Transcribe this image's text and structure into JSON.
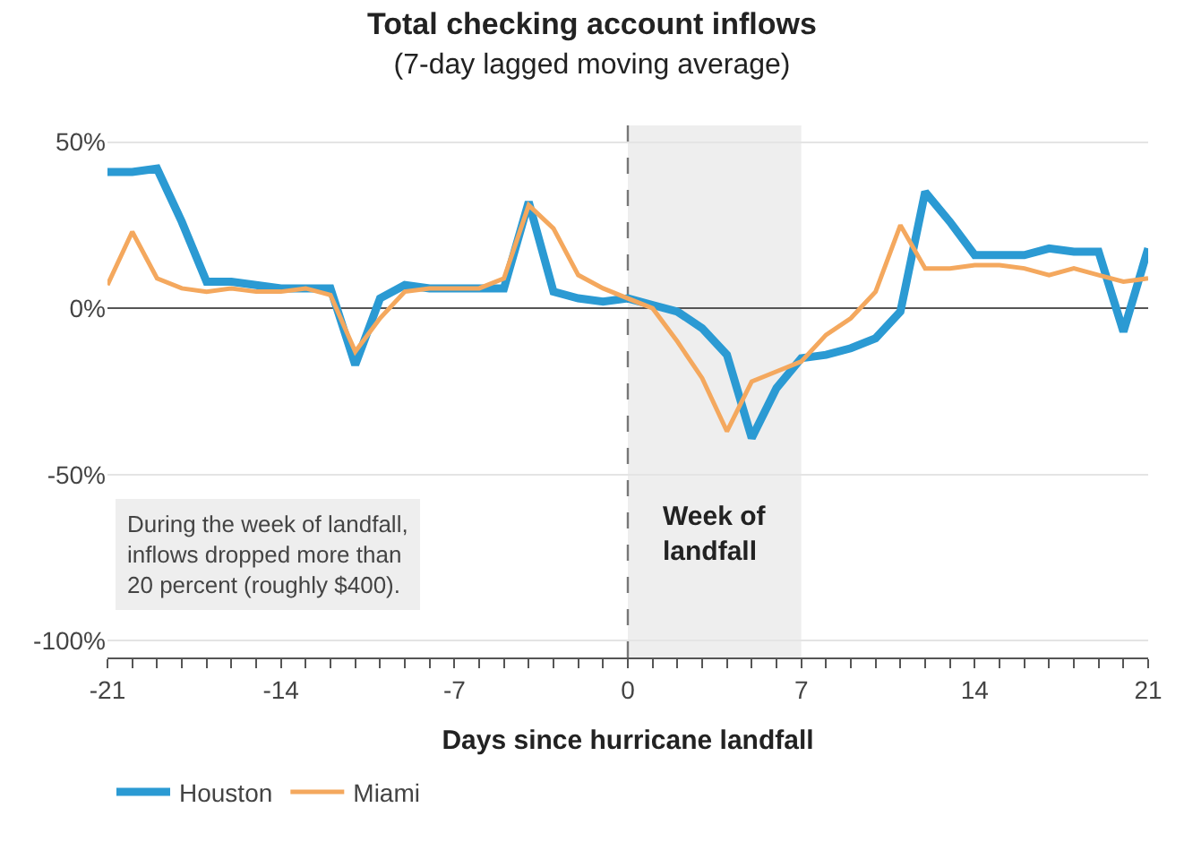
{
  "chart_data": {
    "type": "line",
    "title": "Total checking account inflows",
    "subtitle": "(7-day lagged moving average)",
    "xlabel": "Days since hurricane landfall",
    "x": [
      -21,
      -20,
      -19,
      -18,
      -17,
      -16,
      -15,
      -14,
      -13,
      -12,
      -11,
      -10,
      -9,
      -8,
      -7,
      -6,
      -5,
      -4,
      -3,
      -2,
      -1,
      0,
      1,
      2,
      3,
      4,
      5,
      6,
      7,
      8,
      9,
      10,
      11,
      12,
      13,
      14,
      15,
      16,
      17,
      18,
      19,
      20,
      21
    ],
    "series": [
      {
        "name": "Houston",
        "color": "#2b9ad3",
        "values": [
          41,
          41,
          42,
          26,
          8,
          8,
          7,
          6,
          6,
          6,
          -17,
          3,
          7,
          6,
          6,
          6,
          6,
          32,
          5,
          3,
          2,
          3,
          1,
          -1,
          -6,
          -14,
          -39,
          -24,
          -15,
          -14,
          -12,
          -9,
          -1,
          35,
          26,
          16,
          16,
          16,
          18,
          17,
          17,
          -7,
          18
        ]
      },
      {
        "name": "Miami",
        "color": "#f4a85e",
        "values": [
          7,
          23,
          9,
          6,
          5,
          6,
          5,
          5,
          6,
          4,
          -13,
          -3,
          5,
          6,
          6,
          6,
          9,
          31,
          24,
          10,
          6,
          3,
          0,
          -10,
          -21,
          -37,
          -22,
          -19,
          -16,
          -8,
          -3,
          5,
          25,
          12,
          12,
          13,
          13,
          12,
          10,
          12,
          10,
          8,
          9
        ]
      }
    ],
    "xlim": [
      -21,
      21
    ],
    "xticks": [
      -21,
      {
        "value": -20,
        "label": null
      },
      {
        "value": -19,
        "label": null
      },
      {
        "value": -18,
        "label": null
      },
      {
        "value": -17,
        "label": null
      },
      {
        "value": -16,
        "label": null
      },
      {
        "value": -15,
        "label": null
      },
      -14,
      {
        "value": -13,
        "label": null
      },
      {
        "value": -12,
        "label": null
      },
      {
        "value": -11,
        "label": null
      },
      {
        "value": -10,
        "label": null
      },
      {
        "value": -9,
        "label": null
      },
      {
        "value": -8,
        "label": null
      },
      -7,
      {
        "value": -6,
        "label": null
      },
      {
        "value": -5,
        "label": null
      },
      {
        "value": -4,
        "label": null
      },
      {
        "value": -3,
        "label": null
      },
      {
        "value": -2,
        "label": null
      },
      {
        "value": -1,
        "label": null
      },
      0,
      {
        "value": 1,
        "label": null
      },
      {
        "value": 2,
        "label": null
      },
      {
        "value": 3,
        "label": null
      },
      {
        "value": 4,
        "label": null
      },
      {
        "value": 5,
        "label": null
      },
      {
        "value": 6,
        "label": null
      },
      7,
      {
        "value": 8,
        "label": null
      },
      {
        "value": 9,
        "label": null
      },
      {
        "value": 10,
        "label": null
      },
      {
        "value": 11,
        "label": null
      },
      {
        "value": 12,
        "label": null
      },
      {
        "value": 13,
        "label": null
      },
      14,
      {
        "value": 15,
        "label": null
      },
      {
        "value": 16,
        "label": null
      },
      {
        "value": 17,
        "label": null
      },
      {
        "value": 18,
        "label": null
      },
      {
        "value": 19,
        "label": null
      },
      {
        "value": 20,
        "label": null
      },
      21
    ],
    "ylim": [
      -105,
      55
    ],
    "yticks": [
      {
        "value": 50,
        "label": "50%"
      },
      {
        "value": 0,
        "label": "0%"
      },
      {
        "value": -50,
        "label": "-50%"
      },
      {
        "value": -100,
        "label": "-100%"
      }
    ],
    "grid": "y",
    "bands": [
      {
        "axis": "x",
        "from": 0,
        "to": 7,
        "label": "Week of\nlandfall",
        "color": "#eeeeee"
      }
    ],
    "ref_lines": [
      {
        "axis": "x",
        "value": 0,
        "label": null,
        "color": "#777777",
        "line_style": "dashed"
      }
    ],
    "annotations": [
      "During the week of landfall,\ninflows dropped more than\n20 percent (roughly $400)."
    ],
    "legend": "bottom left",
    "line_style": "solid",
    "marker": "none"
  }
}
